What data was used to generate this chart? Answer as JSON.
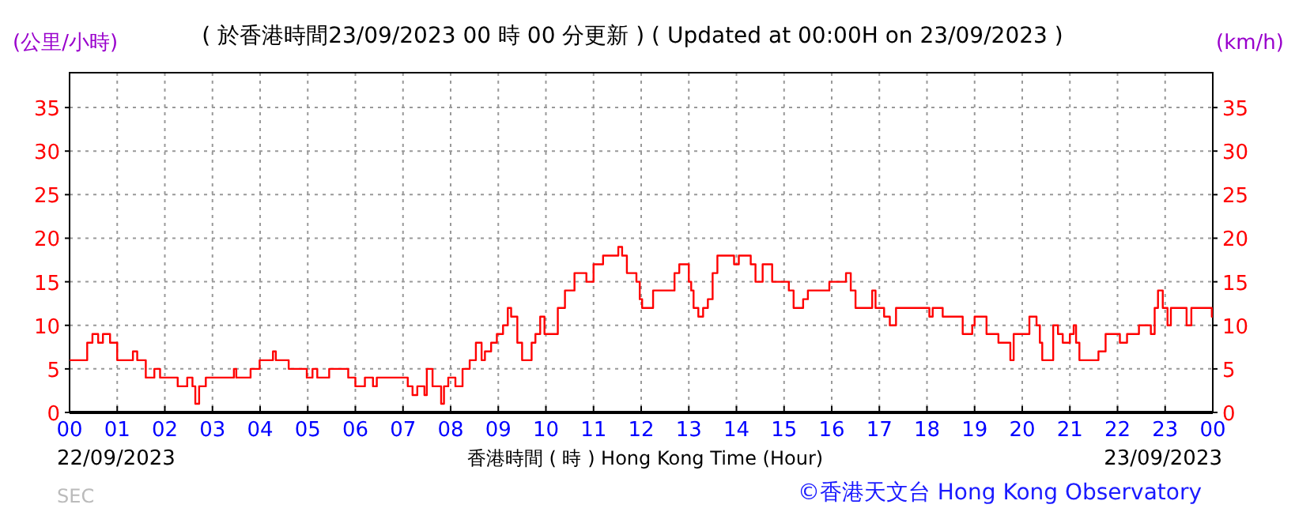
{
  "chart_data": {
    "type": "step",
    "title": "( 於香港時間23/09/2023 00 時 00 分更新 ) ( Updated at 00:00H on 23/09/2023 )",
    "ylabel": "(公里/小時)",
    "y2label": "(km/h)",
    "xlabel": "香港時間 ( 時 ) Hong Kong Time (Hour)",
    "annotations": [
      "22/09/2023",
      "23/09/2023",
      "SEC",
      "©香港天文台 Hong Kong Observatory"
    ],
    "xlim": [
      0,
      24
    ],
    "xticks": [
      {
        "value": 0,
        "label": "00"
      },
      {
        "value": 1,
        "label": "01"
      },
      {
        "value": 2,
        "label": "02"
      },
      {
        "value": 3,
        "label": "03"
      },
      {
        "value": 4,
        "label": "04"
      },
      {
        "value": 5,
        "label": "05"
      },
      {
        "value": 6,
        "label": "06"
      },
      {
        "value": 7,
        "label": "07"
      },
      {
        "value": 8,
        "label": "08"
      },
      {
        "value": 9,
        "label": "09"
      },
      {
        "value": 10,
        "label": "10"
      },
      {
        "value": 11,
        "label": "11"
      },
      {
        "value": 12,
        "label": "12"
      },
      {
        "value": 13,
        "label": "13"
      },
      {
        "value": 14,
        "label": "14"
      },
      {
        "value": 15,
        "label": "15"
      },
      {
        "value": 16,
        "label": "16"
      },
      {
        "value": 17,
        "label": "17"
      },
      {
        "value": 18,
        "label": "18"
      },
      {
        "value": 19,
        "label": "19"
      },
      {
        "value": 20,
        "label": "20"
      },
      {
        "value": 21,
        "label": "21"
      },
      {
        "value": 22,
        "label": "22"
      },
      {
        "value": 23,
        "label": "23"
      },
      {
        "value": 24,
        "label": "00"
      }
    ],
    "ylim": [
      0,
      39
    ],
    "yticks": [
      0,
      5,
      10,
      15,
      20,
      25,
      30,
      35
    ],
    "y2lim": [
      0,
      39
    ],
    "y2ticks": [
      0,
      5,
      10,
      15,
      20,
      25,
      30,
      35
    ],
    "grid": true,
    "series": [
      {
        "color": "#ff0000",
        "x": [
          0,
          0.37,
          0.48,
          0.6,
          0.7,
          0.85,
          1.0,
          1.33,
          1.42,
          1.6,
          1.78,
          1.9,
          2.27,
          2.47,
          2.58,
          2.64,
          2.72,
          2.86,
          3.45,
          3.5,
          3.8,
          3.99,
          4.27,
          4.33,
          4.6,
          4.98,
          5.1,
          5.2,
          5.45,
          5.85,
          6.0,
          6.2,
          6.37,
          6.45,
          7.1,
          7.2,
          7.3,
          7.45,
          7.5,
          7.62,
          7.8,
          7.86,
          7.95,
          8.1,
          8.25,
          8.4,
          8.53,
          8.65,
          8.72,
          8.85,
          8.97,
          9.1,
          9.2,
          9.27,
          9.4,
          9.5,
          9.7,
          9.78,
          9.88,
          9.97,
          10.25,
          10.4,
          10.6,
          10.85,
          11.0,
          11.2,
          11.52,
          11.6,
          11.7,
          11.9,
          11.97,
          12.02,
          12.25,
          12.7,
          12.8,
          13.0,
          13.05,
          13.1,
          13.2,
          13.3,
          13.4,
          13.5,
          13.6,
          13.95,
          14.05,
          14.3,
          14.4,
          14.55,
          14.75,
          15.1,
          15.2,
          15.4,
          15.5,
          15.95,
          16.3,
          16.4,
          16.5,
          16.85,
          16.92,
          17.1,
          17.22,
          17.35,
          18.05,
          18.12,
          18.33,
          18.75,
          18.95,
          19.0,
          19.25,
          19.5,
          19.75,
          19.82,
          20.15,
          20.3,
          20.37,
          20.42,
          20.65,
          20.75,
          20.85,
          21.0,
          21.08,
          21.13,
          21.2,
          21.6,
          21.75,
          22.05,
          22.2,
          22.45,
          22.7,
          22.78,
          22.85,
          22.95,
          23.05,
          23.12,
          23.45,
          23.55,
          23.98,
          24
        ],
        "values": [
          6,
          8,
          9,
          8,
          9,
          8,
          6,
          7,
          6,
          4,
          5,
          4,
          3,
          4,
          3,
          1,
          3,
          4,
          5,
          4,
          5,
          6,
          7,
          6,
          5,
          4,
          5,
          4,
          5,
          4,
          3,
          4,
          3,
          4,
          3,
          2,
          3,
          2,
          5,
          3,
          1,
          3,
          4,
          3,
          5,
          6,
          8,
          6,
          7,
          8,
          9,
          10,
          12,
          11,
          8,
          6,
          8,
          9,
          11,
          9,
          12,
          14,
          16,
          15,
          17,
          18,
          19,
          18,
          16,
          15,
          13,
          12,
          14,
          16,
          17,
          15,
          14,
          12,
          11,
          12,
          13,
          16,
          18,
          17,
          18,
          17,
          15,
          17,
          15,
          14,
          12,
          13,
          14,
          15,
          16,
          14,
          12,
          14,
          12,
          11,
          10,
          12,
          11,
          12,
          11,
          9,
          10,
          11,
          9,
          8,
          6,
          9,
          11,
          10,
          8,
          6,
          10,
          9,
          8,
          9,
          10,
          8,
          6,
          7,
          9,
          8,
          9,
          10,
          9,
          12,
          14,
          12,
          10,
          12,
          10,
          12,
          11,
          11
        ]
      }
    ]
  }
}
